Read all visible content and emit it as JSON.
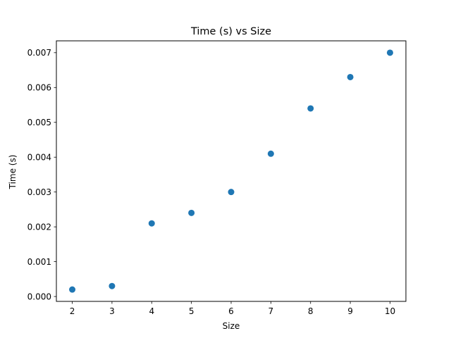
{
  "chart_data": {
    "type": "scatter",
    "title": "Time (s) vs Size",
    "xlabel": "Size",
    "ylabel": "Time (s)",
    "x": [
      2,
      3,
      4,
      5,
      6,
      7,
      8,
      9,
      10
    ],
    "y": [
      0.0002,
      0.0003,
      0.0021,
      0.0024,
      0.003,
      0.0041,
      0.0054,
      0.0063,
      0.007
    ],
    "xlim": [
      1.6,
      10.4
    ],
    "ylim": [
      -0.00014,
      0.00734
    ],
    "x_ticks": [
      2,
      3,
      4,
      5,
      6,
      7,
      8,
      9,
      10
    ],
    "x_tick_labels": [
      "2",
      "3",
      "4",
      "5",
      "6",
      "7",
      "8",
      "9",
      "10"
    ],
    "y_ticks": [
      0,
      0.001,
      0.002,
      0.003,
      0.004,
      0.005,
      0.006,
      0.007
    ],
    "y_tick_labels": [
      "0.000",
      "0.001",
      "0.002",
      "0.003",
      "0.004",
      "0.005",
      "0.006",
      "0.007"
    ],
    "grid": false,
    "marker_color": "#1f77b4"
  }
}
